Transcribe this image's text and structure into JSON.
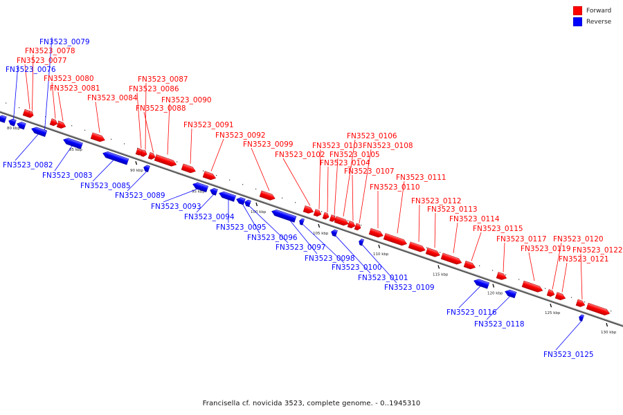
{
  "legend": {
    "forward": {
      "label": "Forward",
      "color": "#ff0000"
    },
    "reverse": {
      "label": "Reverse",
      "color": "#0000ff"
    }
  },
  "caption": "Francisella cf. novicida 3523, complete genome. - 0..1945310",
  "scale_labels": [
    "80 kbp",
    "85 kbp",
    "90 kbp",
    "95 kbp",
    "100 kbp",
    "105 kbp",
    "110 kbp",
    "115 kbp",
    "120 kbp",
    "125 kbp",
    "130 kbp"
  ],
  "genes_forward": [
    "FN3523_0077",
    "FN3523_0078",
    "FN3523_0080",
    "FN3523_0081",
    "FN3523_0084",
    "FN3523_0086",
    "FN3523_0087",
    "FN3523_0088",
    "FN3523_0090",
    "FN3523_0091",
    "FN3523_0092",
    "FN3523_0099",
    "FN3523_0102",
    "FN3523_0103",
    "FN3523_0104",
    "FN3523_0105",
    "FN3523_0106",
    "FN3523_0107",
    "FN3523_0108",
    "FN3523_0110",
    "FN3523_0111",
    "FN3523_0112",
    "FN3523_0113",
    "FN3523_0114",
    "FN3523_0115",
    "FN3523_0117",
    "FN3523_0119",
    "FN3523_0120",
    "FN3523_0121",
    "FN3523_0122"
  ],
  "genes_reverse": [
    "FN3523_0076",
    "FN3523_0079",
    "FN3523_0082",
    "FN3523_0083",
    "FN3523_0085",
    "FN3523_0089",
    "FN3523_0093",
    "FN3523_0094",
    "FN3523_0095",
    "FN3523_0096",
    "FN3523_0097",
    "FN3523_0098",
    "FN3523_0100",
    "FN3523_0101",
    "FN3523_0109",
    "FN3523_0116",
    "FN3523_0118",
    "FN3523_0125"
  ]
}
